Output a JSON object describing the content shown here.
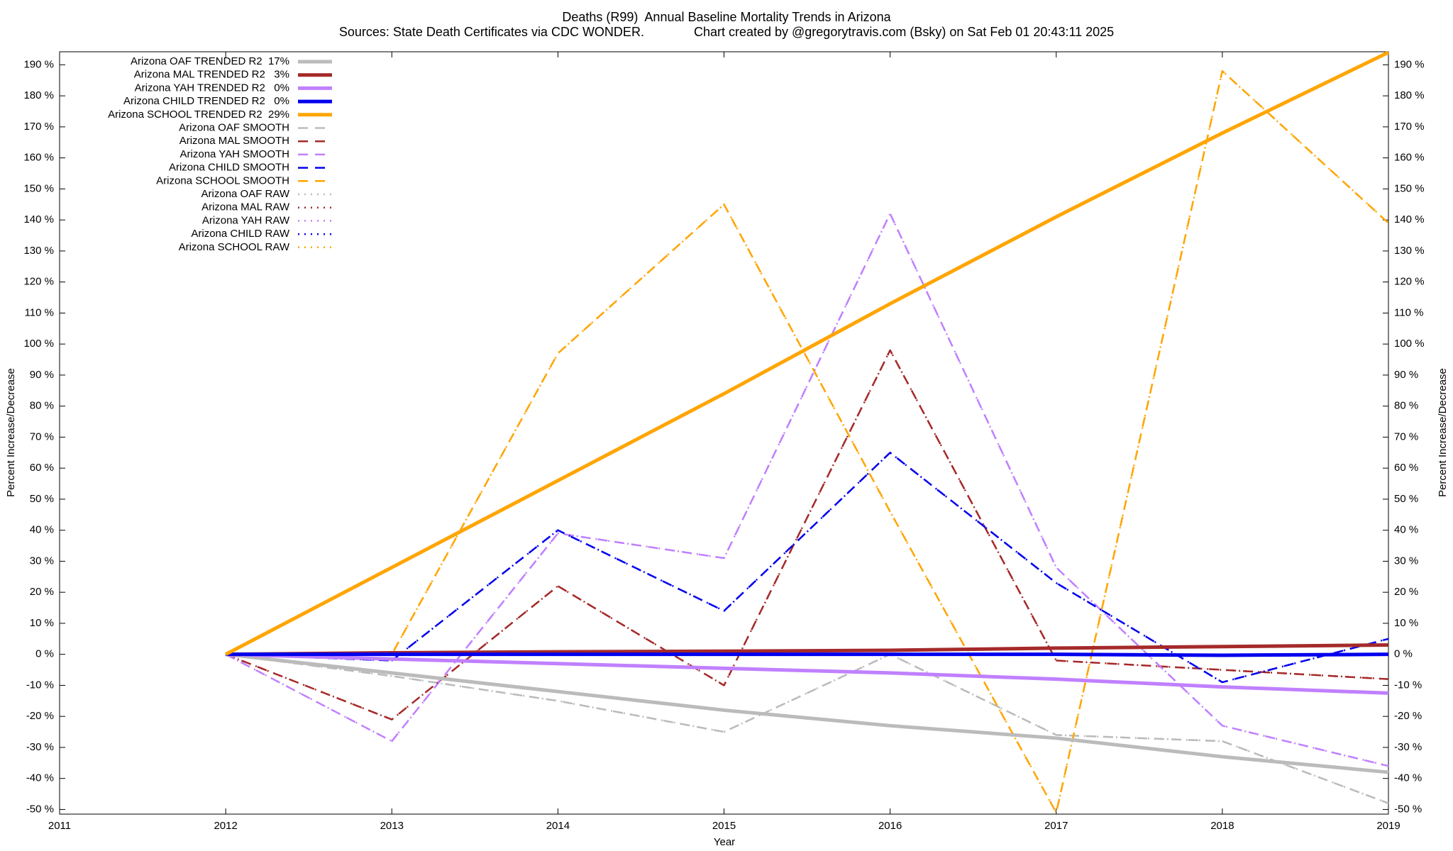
{
  "chart_data": {
    "type": "line",
    "title": "Deaths (R99)  Annual Baseline Mortality Trends in Arizona",
    "subtitle": "Sources: State Death Certificates via CDC WONDER.              Chart created by @gregorytravis.com (Bsky) on Sat Feb 01 20:43:11 2025",
    "xlabel": "Year",
    "ylabel": "Percent Increase/Decrease",
    "legend": "top-left",
    "grid": false,
    "x": [
      2012,
      2013,
      2014,
      2015,
      2016,
      2017,
      2018,
      2019
    ],
    "xlim": [
      2011,
      2019
    ],
    "xticks": [
      2011,
      2012,
      2013,
      2014,
      2015,
      2016,
      2017,
      2018,
      2019
    ],
    "ylim": [
      -51.5,
      194.2
    ],
    "yticks": [
      {
        "value": -50,
        "label": "-50 %"
      },
      {
        "value": -40,
        "label": "-40 %"
      },
      {
        "value": -30,
        "label": "-30 %"
      },
      {
        "value": -20,
        "label": "-20 %"
      },
      {
        "value": -10,
        "label": "-10 %"
      },
      {
        "value": 0,
        "label": "0 %"
      },
      {
        "value": 10,
        "label": "10 %"
      },
      {
        "value": 20,
        "label": "20 %"
      },
      {
        "value": 30,
        "label": "30 %"
      },
      {
        "value": 40,
        "label": "40 %"
      },
      {
        "value": 50,
        "label": "50 %"
      },
      {
        "value": 60,
        "label": "60 %"
      },
      {
        "value": 70,
        "label": "70 %"
      },
      {
        "value": 80,
        "label": "80 %"
      },
      {
        "value": 90,
        "label": "90 %"
      },
      {
        "value": 100,
        "label": "100 %"
      },
      {
        "value": 110,
        "label": "110 %"
      },
      {
        "value": 120,
        "label": "120 %"
      },
      {
        "value": 130,
        "label": "130 %"
      },
      {
        "value": 140,
        "label": "140 %"
      },
      {
        "value": 150,
        "label": "150 %"
      },
      {
        "value": 160,
        "label": "160 %"
      },
      {
        "value": 170,
        "label": "170 %"
      },
      {
        "value": 180,
        "label": "180 %"
      },
      {
        "value": 190,
        "label": "190 %"
      }
    ],
    "series": [
      {
        "name": "Arizona OAF TRENDED R2  17%",
        "color": "#bbbbbb",
        "dash": "solid",
        "values": [
          0,
          -6,
          -12,
          -18,
          -23,
          -27,
          -33,
          -38
        ]
      },
      {
        "name": "Arizona MAL TRENDED R2   3%",
        "color": "#a52a2a",
        "dash": "solid",
        "values": [
          0,
          0.5,
          0.8,
          1,
          1.3,
          2,
          2.5,
          3
        ]
      },
      {
        "name": "Arizona YAH TRENDED R2   0%",
        "color": "#c080ff",
        "dash": "solid",
        "values": [
          0,
          -1.5,
          -3,
          -4.5,
          -6,
          -8,
          -10.5,
          -12.5
        ]
      },
      {
        "name": "Arizona CHILD TRENDED R2   0%",
        "color": "#0000ee",
        "dash": "solid",
        "values": [
          0,
          0,
          0,
          0,
          0,
          0,
          -0.3,
          0
        ]
      },
      {
        "name": "Arizona SCHOOL TRENDED R2  29%",
        "color": "#ffa500",
        "dash": "solid",
        "values": [
          0,
          28,
          56,
          84,
          113,
          141,
          168,
          194
        ]
      },
      {
        "name": "Arizona OAF SMOOTH",
        "color": "#bbbbbb",
        "dash": "dashed",
        "values": [
          0,
          -7,
          -15,
          -25,
          0,
          -26,
          -28,
          -48
        ]
      },
      {
        "name": "Arizona MAL SMOOTH",
        "color": "#a52a2a",
        "dash": "dashed",
        "values": [
          0,
          -21,
          22,
          -10,
          98,
          -2,
          -5,
          -8
        ]
      },
      {
        "name": "Arizona YAH SMOOTH",
        "color": "#c080ff",
        "dash": "dashed",
        "values": [
          0,
          -28,
          39,
          31,
          142,
          28,
          -23,
          -36
        ]
      },
      {
        "name": "Arizona CHILD SMOOTH",
        "color": "#0000ee",
        "dash": "dashed",
        "values": [
          0,
          -2,
          40,
          14,
          65,
          23,
          -9,
          5
        ]
      },
      {
        "name": "Arizona SCHOOL SMOOTH",
        "color": "#ffa500",
        "dash": "dashed",
        "values": [
          0,
          0,
          97,
          145,
          46,
          -51,
          188,
          139
        ]
      },
      {
        "name": "Arizona OAF RAW",
        "color": "#bbbbbb",
        "dash": "dotted",
        "values": [
          0,
          -7,
          -15,
          -25,
          0,
          -26,
          -28,
          -48
        ]
      },
      {
        "name": "Arizona MAL RAW",
        "color": "#a52a2a",
        "dash": "dotted",
        "values": [
          0,
          -21,
          22,
          -10,
          98,
          -2,
          -5,
          -8
        ]
      },
      {
        "name": "Arizona YAH RAW",
        "color": "#c080ff",
        "dash": "dotted",
        "values": [
          0,
          -28,
          39,
          31,
          142,
          28,
          -23,
          -36
        ]
      },
      {
        "name": "Arizona CHILD RAW",
        "color": "#0000ee",
        "dash": "dotted",
        "values": [
          0,
          -2,
          40,
          14,
          65,
          23,
          -9,
          5
        ]
      },
      {
        "name": "Arizona SCHOOL RAW",
        "color": "#ffa500",
        "dash": "dotted",
        "values": [
          0,
          0,
          97,
          145,
          46,
          -51,
          188,
          139
        ]
      }
    ]
  }
}
